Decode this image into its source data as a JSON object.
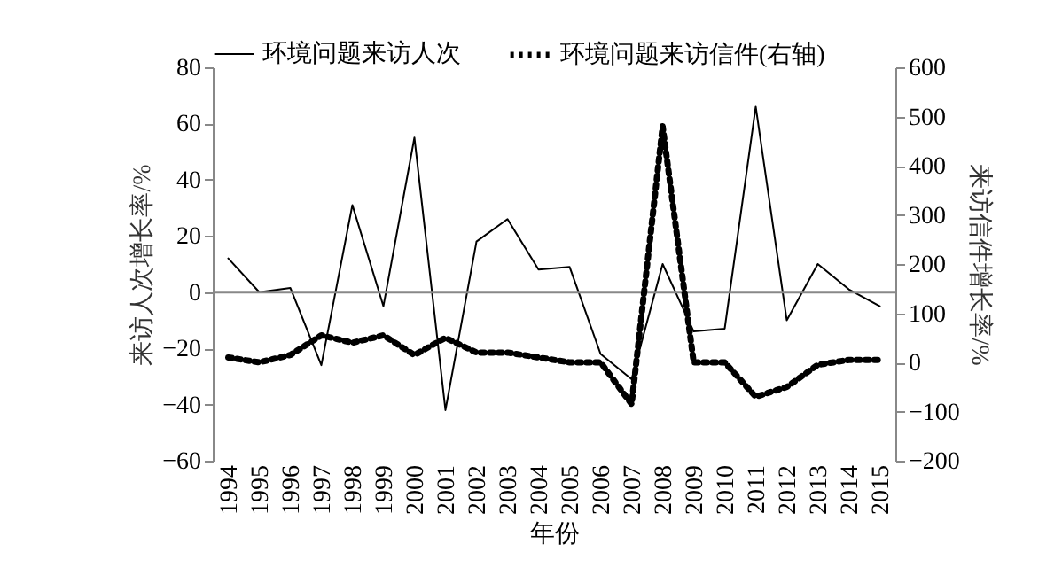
{
  "chart_data": {
    "type": "line",
    "xlabel": "年份",
    "ylabel": "来访人次增长率/%",
    "y2label": "来访信件增长率/%",
    "categories": [
      "1994",
      "1995",
      "1996",
      "1997",
      "1998",
      "1999",
      "2000",
      "2001",
      "2002",
      "2003",
      "2004",
      "2005",
      "2006",
      "2007",
      "2008",
      "2009",
      "2010",
      "2011",
      "2012",
      "2013",
      "2014",
      "2015"
    ],
    "series": [
      {
        "name": "环境问题来访人次",
        "color": "#000000",
        "line_style": "solid",
        "values": [
          12,
          0,
          1.5,
          -26,
          31,
          -5,
          55,
          -42,
          18,
          26,
          8,
          9,
          -22,
          -31,
          10,
          -14,
          -13,
          66,
          -10,
          10,
          1,
          -5
        ]
      },
      {
        "name": "环境问题来访信件(右轴)",
        "color": "#000000",
        "line_style": "dotted",
        "axis": "y2",
        "values": [
          10,
          0,
          15,
          55,
          40,
          55,
          15,
          50,
          20,
          20,
          10,
          0,
          0,
          -85,
          480,
          0,
          0,
          -70,
          -50,
          -5,
          5,
          5
        ]
      }
    ],
    "ylim": [
      -60,
      80
    ],
    "yticks": [
      -60,
      -40,
      -20,
      0,
      20,
      40,
      60,
      80
    ],
    "y2lim": [
      -200,
      600
    ],
    "y2ticks": [
      -200,
      -100,
      0,
      100,
      200,
      300,
      400,
      500,
      600
    ],
    "ref_lines": [
      {
        "axis": "y",
        "value": 0,
        "color": "#888888"
      }
    ],
    "legend": "top",
    "grid": false
  }
}
